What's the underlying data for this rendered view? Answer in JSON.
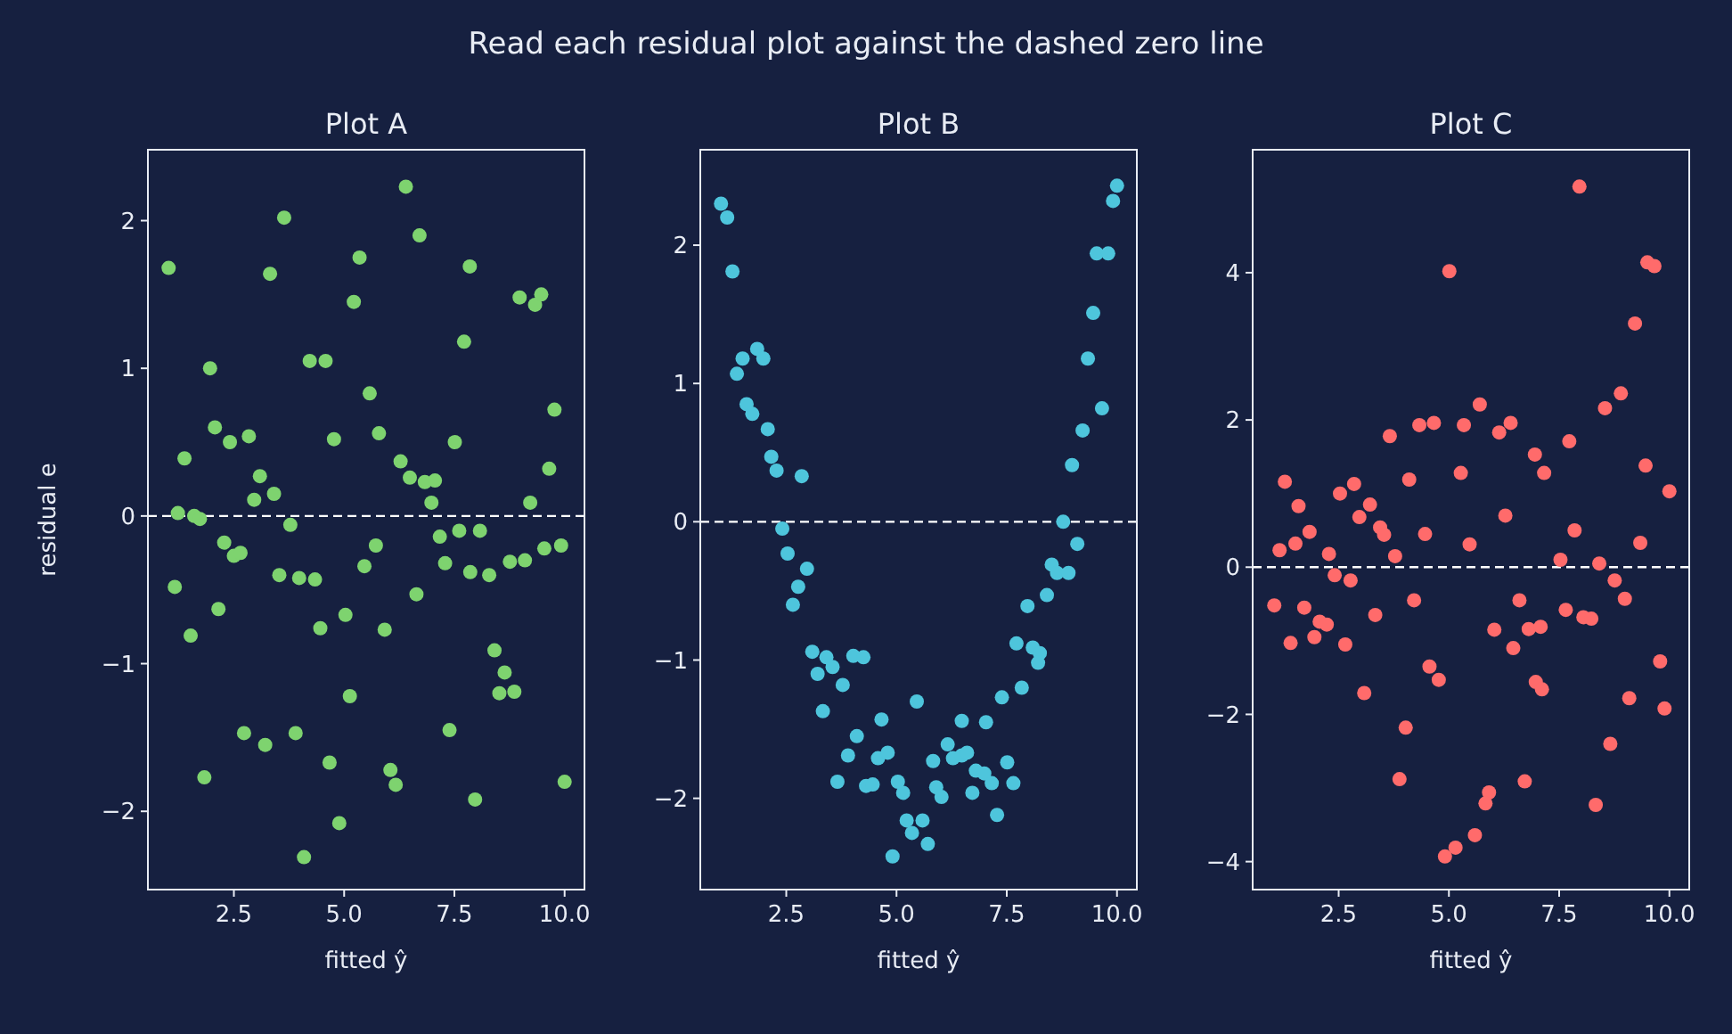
{
  "chart_data": [
    {
      "type": "scatter",
      "title": "Plot A",
      "xlabel": "fitted ŷ",
      "ylabel": "residual e",
      "annotations": [
        "Read each residual plot against the dashed zero line"
      ],
      "marker": "circle",
      "xlim": [
        0.55,
        10.45
      ],
      "ylim": [
        -2.53,
        2.48
      ],
      "xticks": [
        {
          "value": 2.5,
          "label": "2.5"
        },
        {
          "value": 5,
          "label": "5.0"
        },
        {
          "value": 7.5,
          "label": "7.5"
        },
        {
          "value": 10,
          "label": "10.0"
        }
      ],
      "yticks": [
        {
          "value": -2,
          "label": "−2"
        },
        {
          "value": -1,
          "label": "−1"
        },
        0,
        1,
        2
      ],
      "ref_lines": [
        {
          "axis": "y",
          "value": 0,
          "color": "#ffffff",
          "line_style": "dashed"
        }
      ],
      "series": [
        {
          "color": "#7ed36f",
          "x": [
            1.02,
            3.64,
            6.4,
            6.71,
            5.35,
            3.32,
            7.85,
            5.22,
            8.98,
            9.33,
            9.47,
            7.72,
            1.96,
            4.22,
            4.58,
            5.58,
            9.77,
            2.07,
            2.41,
            2.84,
            1.38,
            4.77,
            5.79,
            7.51,
            6.28,
            6.49,
            6.83,
            7.06,
            9.65,
            3.09,
            2.96,
            3.41,
            6.98,
            9.22,
            1.23,
            1.6,
            1.73,
            3.78,
            2.28,
            2.5,
            2.65,
            5.72,
            7.17,
            7.61,
            8.08,
            7.29,
            5.46,
            3.53,
            3.98,
            4.34,
            7.86,
            8.29,
            8.76,
            9.1,
            9.54,
            9.92,
            1.16,
            6.64,
            2.15,
            1.52,
            5.03,
            4.46,
            5.92,
            8.41,
            8.64,
            8.52,
            8.86,
            5.13,
            2.73,
            3.21,
            3.9,
            7.39,
            1.83,
            4.67,
            6.05,
            6.17,
            7.97,
            10.0,
            4.89,
            4.09
          ],
          "values": [
            1.68,
            2.02,
            2.23,
            1.9,
            1.75,
            1.64,
            1.69,
            1.45,
            1.48,
            1.43,
            1.5,
            1.18,
            1.0,
            1.05,
            1.05,
            0.83,
            0.72,
            0.6,
            0.5,
            0.54,
            0.39,
            0.52,
            0.56,
            0.5,
            0.37,
            0.26,
            0.23,
            0.24,
            0.32,
            0.27,
            0.11,
            0.15,
            0.09,
            0.09,
            0.02,
            0.0,
            -0.02,
            -0.06,
            -0.18,
            -0.27,
            -0.25,
            -0.2,
            -0.14,
            -0.1,
            -0.1,
            -0.32,
            -0.34,
            -0.4,
            -0.42,
            -0.43,
            -0.38,
            -0.4,
            -0.31,
            -0.3,
            -0.22,
            -0.2,
            -0.48,
            -0.53,
            -0.63,
            -0.81,
            -0.67,
            -0.76,
            -0.77,
            -0.91,
            -1.06,
            -1.2,
            -1.19,
            -1.22,
            -1.47,
            -1.55,
            -1.47,
            -1.45,
            -1.77,
            -1.67,
            -1.72,
            -1.82,
            -1.92,
            -1.8,
            -2.08,
            -2.31
          ]
        }
      ]
    },
    {
      "type": "scatter",
      "title": "Plot B",
      "xlabel": "fitted ŷ",
      "marker": "circle",
      "xlim": [
        0.55,
        10.45
      ],
      "ylim": [
        -2.66,
        2.69
      ],
      "xticks": [
        {
          "value": 2.5,
          "label": "2.5"
        },
        {
          "value": 5,
          "label": "5.0"
        },
        {
          "value": 7.5,
          "label": "7.5"
        },
        {
          "value": 10,
          "label": "10.0"
        }
      ],
      "yticks": [
        {
          "value": -2,
          "label": "−2"
        },
        {
          "value": -1,
          "label": "−1"
        },
        0,
        1,
        2
      ],
      "ref_lines": [
        {
          "axis": "y",
          "value": 0,
          "color": "#ffffff",
          "line_style": "dashed"
        }
      ],
      "series": [
        {
          "color": "#4ec5dc",
          "x": [
            1.02,
            1.16,
            1.28,
            1.51,
            1.38,
            1.84,
            1.98,
            1.6,
            1.73,
            2.08,
            2.16,
            2.28,
            2.85,
            2.41,
            2.53,
            2.97,
            2.77,
            2.65,
            3.09,
            3.41,
            3.55,
            3.21,
            3.78,
            4.02,
            4.25,
            3.33,
            5.46,
            4.66,
            4.1,
            3.9,
            4.58,
            4.8,
            3.66,
            4.31,
            4.46,
            5.03,
            5.15,
            5.83,
            6.16,
            6.28,
            6.48,
            6.6,
            6.48,
            7.03,
            6.8,
            6.99,
            7.16,
            7.51,
            7.65,
            5.9,
            6.02,
            6.72,
            7.28,
            5.23,
            5.35,
            5.59,
            5.71,
            4.91,
            7.39,
            7.84,
            7.72,
            8.09,
            8.25,
            8.21,
            7.97,
            8.41,
            8.52,
            8.64,
            8.9,
            9.1,
            8.78,
            8.98,
            9.22,
            9.66,
            9.34,
            9.46,
            9.54,
            9.8,
            9.91,
            10.0
          ],
          "values": [
            2.3,
            2.2,
            1.81,
            1.18,
            1.07,
            1.25,
            1.18,
            0.85,
            0.78,
            0.67,
            0.47,
            0.37,
            0.33,
            -0.05,
            -0.23,
            -0.34,
            -0.47,
            -0.6,
            -0.94,
            -0.98,
            -1.05,
            -1.1,
            -1.18,
            -0.97,
            -0.98,
            -1.37,
            -1.3,
            -1.43,
            -1.55,
            -1.69,
            -1.71,
            -1.67,
            -1.88,
            -1.91,
            -1.9,
            -1.88,
            -1.96,
            -1.73,
            -1.61,
            -1.71,
            -1.69,
            -1.67,
            -1.44,
            -1.45,
            -1.8,
            -1.82,
            -1.89,
            -1.74,
            -1.89,
            -1.92,
            -1.99,
            -1.96,
            -2.12,
            -2.16,
            -2.25,
            -2.16,
            -2.33,
            -2.42,
            -1.27,
            -1.2,
            -0.88,
            -0.91,
            -0.95,
            -1.02,
            -0.61,
            -0.53,
            -0.31,
            -0.37,
            -0.37,
            -0.16,
            0.0,
            0.41,
            0.66,
            0.82,
            1.18,
            1.51,
            1.94,
            1.94,
            2.32,
            2.43
          ]
        }
      ]
    },
    {
      "type": "scatter",
      "title": "Plot C",
      "xlabel": "fitted ŷ",
      "marker": "circle",
      "xlim": [
        0.55,
        10.45
      ],
      "ylim": [
        -4.38,
        5.67
      ],
      "xticks": [
        {
          "value": 2.5,
          "label": "2.5"
        },
        {
          "value": 5,
          "label": "5.0"
        },
        {
          "value": 7.5,
          "label": "7.5"
        },
        {
          "value": 10,
          "label": "10.0"
        }
      ],
      "yticks": [
        {
          "value": -4,
          "label": "−4"
        },
        {
          "value": -2,
          "label": "−2"
        },
        0,
        2,
        4
      ],
      "ref_lines": [
        {
          "axis": "y",
          "value": 0,
          "color": "#ffffff",
          "line_style": "dashed"
        }
      ],
      "series": [
        {
          "color": "#ff6b6b",
          "x": [
            7.96,
            5.01,
            9.5,
            9.66,
            9.22,
            8.9,
            8.54,
            5.7,
            4.33,
            4.66,
            5.34,
            6.14,
            6.4,
            3.66,
            7.73,
            6.95,
            7.16,
            5.27,
            9.46,
            10.0,
            1.28,
            1.59,
            2.53,
            2.85,
            3.21,
            2.97,
            4.1,
            3.44,
            3.53,
            6.28,
            4.46,
            7.85,
            1.84,
            1.52,
            1.16,
            2.28,
            3.78,
            5.47,
            7.53,
            8.41,
            9.34,
            2.41,
            2.77,
            8.76,
            8.99,
            1.04,
            1.72,
            4.21,
            6.6,
            2.07,
            2.23,
            3.33,
            1.95,
            1.41,
            2.65,
            6.03,
            6.46,
            6.81,
            7.08,
            7.65,
            8.05,
            8.23,
            9.79,
            4.56,
            4.77,
            6.97,
            7.11,
            3.08,
            9.09,
            9.89,
            4.02,
            8.66,
            3.88,
            6.72,
            5.91,
            5.83,
            8.33,
            5.59,
            5.15,
            4.91
          ],
          "values": [
            5.17,
            4.02,
            4.14,
            4.09,
            3.31,
            2.36,
            2.16,
            2.21,
            1.93,
            1.96,
            1.93,
            1.83,
            1.96,
            1.78,
            1.71,
            1.53,
            1.28,
            1.28,
            1.38,
            1.03,
            1.16,
            0.83,
            1.0,
            1.13,
            0.85,
            0.68,
            1.19,
            0.54,
            0.44,
            0.7,
            0.45,
            0.5,
            0.48,
            0.32,
            0.23,
            0.18,
            0.15,
            0.31,
            0.1,
            0.05,
            0.33,
            -0.11,
            -0.18,
            -0.18,
            -0.43,
            -0.52,
            -0.55,
            -0.45,
            -0.45,
            -0.74,
            -0.78,
            -0.65,
            -0.95,
            -1.03,
            -1.05,
            -0.85,
            -1.1,
            -0.84,
            -0.81,
            -0.58,
            -0.68,
            -0.7,
            -1.28,
            -1.35,
            -1.53,
            -1.56,
            -1.66,
            -1.71,
            -1.78,
            -1.92,
            -2.18,
            -2.4,
            -2.88,
            -2.91,
            -3.06,
            -3.21,
            -3.23,
            -3.64,
            -3.81,
            -3.93
          ]
        }
      ]
    }
  ]
}
